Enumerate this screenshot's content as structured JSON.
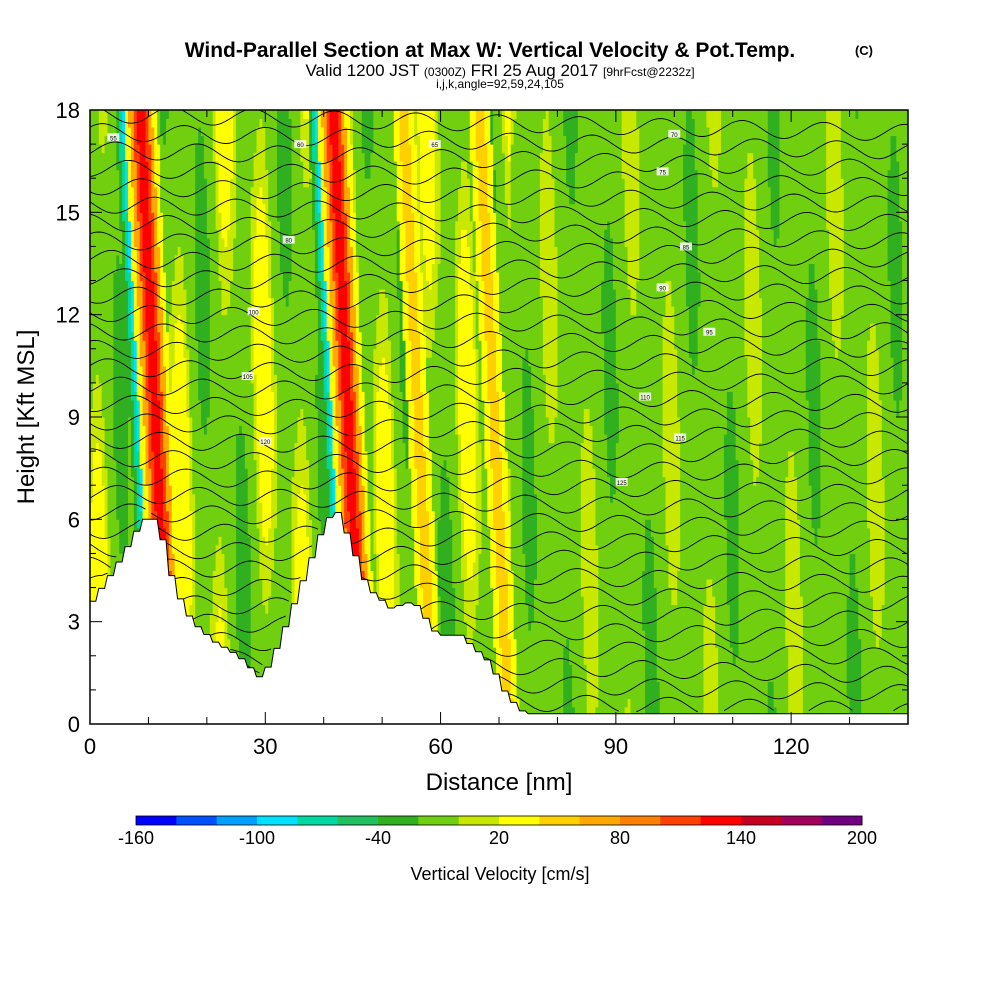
{
  "chart_data": {
    "type": "heatmap",
    "title": "Wind-Parallel Section at Max W: Vertical Velocity & Pot.Temp.",
    "copyright_mark": "(C)",
    "subtitle_valid": "Valid 1200 JST",
    "subtitle_utc": "(0300Z)",
    "subtitle_date": "FRI 25 Aug 2017",
    "subtitle_fcst": "[9hrFcst@2232z]",
    "subtitle_indices": "i,j,k,angle=92,59,24,105",
    "xlabel": "Distance [nm]",
    "ylabel": "Height [Kft MSL]",
    "xlim": [
      0,
      140
    ],
    "ylim": [
      0,
      18
    ],
    "x_ticks": [
      0,
      30,
      60,
      90,
      120
    ],
    "y_ticks": [
      0,
      3,
      6,
      9,
      12,
      15,
      18
    ],
    "colorbar": {
      "label": "Vertical Velocity [cm/s]",
      "levels": [
        -160,
        -140,
        -120,
        -100,
        -80,
        -60,
        -40,
        -20,
        0,
        20,
        40,
        60,
        80,
        100,
        120,
        140,
        160,
        180,
        200
      ],
      "tick_labels": [
        -160,
        -100,
        -40,
        20,
        80,
        140,
        200
      ],
      "colors": [
        "#0000ff",
        "#0050ff",
        "#00a0ff",
        "#00e0ff",
        "#00d8a0",
        "#20c060",
        "#30b020",
        "#70d010",
        "#c8e800",
        "#ffff00",
        "#ffd000",
        "#ffa800",
        "#ff8000",
        "#ff4000",
        "#ff0000",
        "#c80020",
        "#a0005a",
        "#700080"
      ]
    },
    "terrain_kft": [
      [
        0,
        3.6
      ],
      [
        4,
        4.6
      ],
      [
        8,
        5.8
      ],
      [
        10,
        6.2
      ],
      [
        12,
        5.4
      ],
      [
        14,
        4.0
      ],
      [
        17,
        3.0
      ],
      [
        21,
        2.4
      ],
      [
        25,
        2.0
      ],
      [
        29,
        1.3
      ],
      [
        32,
        2.4
      ],
      [
        36,
        4.2
      ],
      [
        40,
        6.0
      ],
      [
        42,
        6.2
      ],
      [
        44,
        5.4
      ],
      [
        47,
        4.0
      ],
      [
        51,
        3.4
      ],
      [
        55,
        3.6
      ],
      [
        59,
        2.6
      ],
      [
        63,
        2.6
      ],
      [
        68,
        1.8
      ],
      [
        71,
        0.8
      ],
      [
        74,
        0.3
      ],
      [
        140,
        0.3
      ]
    ],
    "updraft_bands_x_nm": [
      12,
      45,
      57,
      70
    ],
    "downdraft_bands_x_nm": [
      10,
      43
    ],
    "theta_contour_labels": [
      "55",
      "60",
      "65",
      "70",
      "75",
      "80",
      "85",
      "90",
      "95",
      "100",
      "105",
      "110",
      "115",
      "120",
      "125"
    ]
  }
}
